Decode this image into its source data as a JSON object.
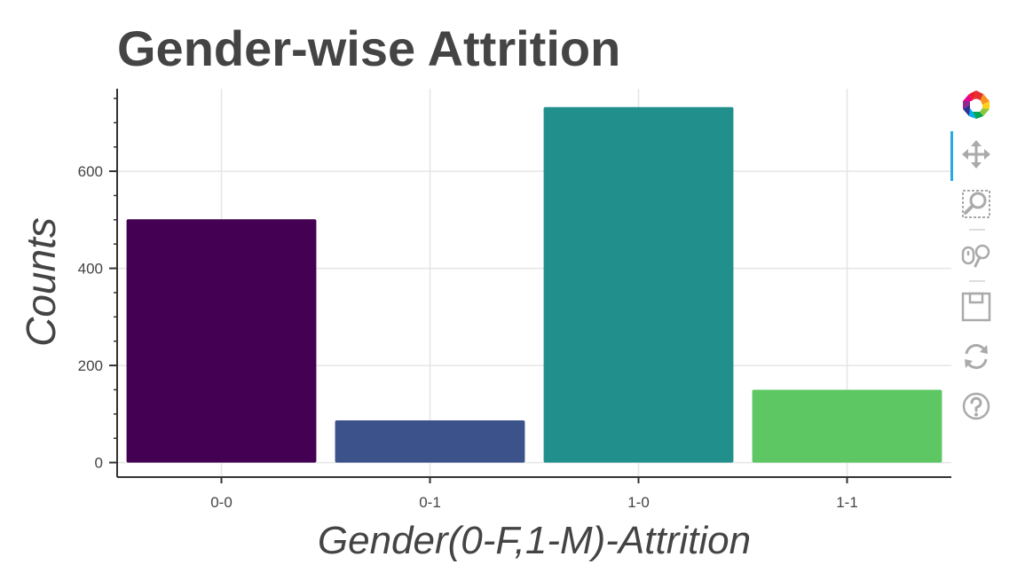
{
  "chart_data": {
    "type": "bar",
    "title": "Gender-wise Attrition",
    "xlabel": "Gender(0-F,1-M)-Attrition",
    "ylabel": "Counts",
    "categories": [
      "0-0",
      "0-1",
      "1-0",
      "1-1"
    ],
    "values": [
      501,
      87,
      732,
      150
    ],
    "colors": [
      "#440154",
      "#3b528b",
      "#21908c",
      "#5dc863"
    ],
    "ylim": [
      -30,
      770
    ],
    "yticks": [
      0,
      200,
      400,
      600
    ],
    "ytick_labels": [
      "0",
      "200",
      "400",
      "600"
    ],
    "grid": true,
    "legend": "none"
  },
  "toolbar": {
    "items": [
      {
        "name": "bokeh-logo-icon"
      },
      {
        "name": "pan-tool-icon"
      },
      {
        "name": "box-zoom-tool-icon"
      },
      {
        "name": "wheel-zoom-tool-icon"
      },
      {
        "name": "save-tool-icon"
      },
      {
        "name": "reset-tool-icon"
      },
      {
        "name": "help-tool-icon"
      }
    ],
    "active_color": "#26aae1",
    "icon_color": "#bbbbbb"
  }
}
